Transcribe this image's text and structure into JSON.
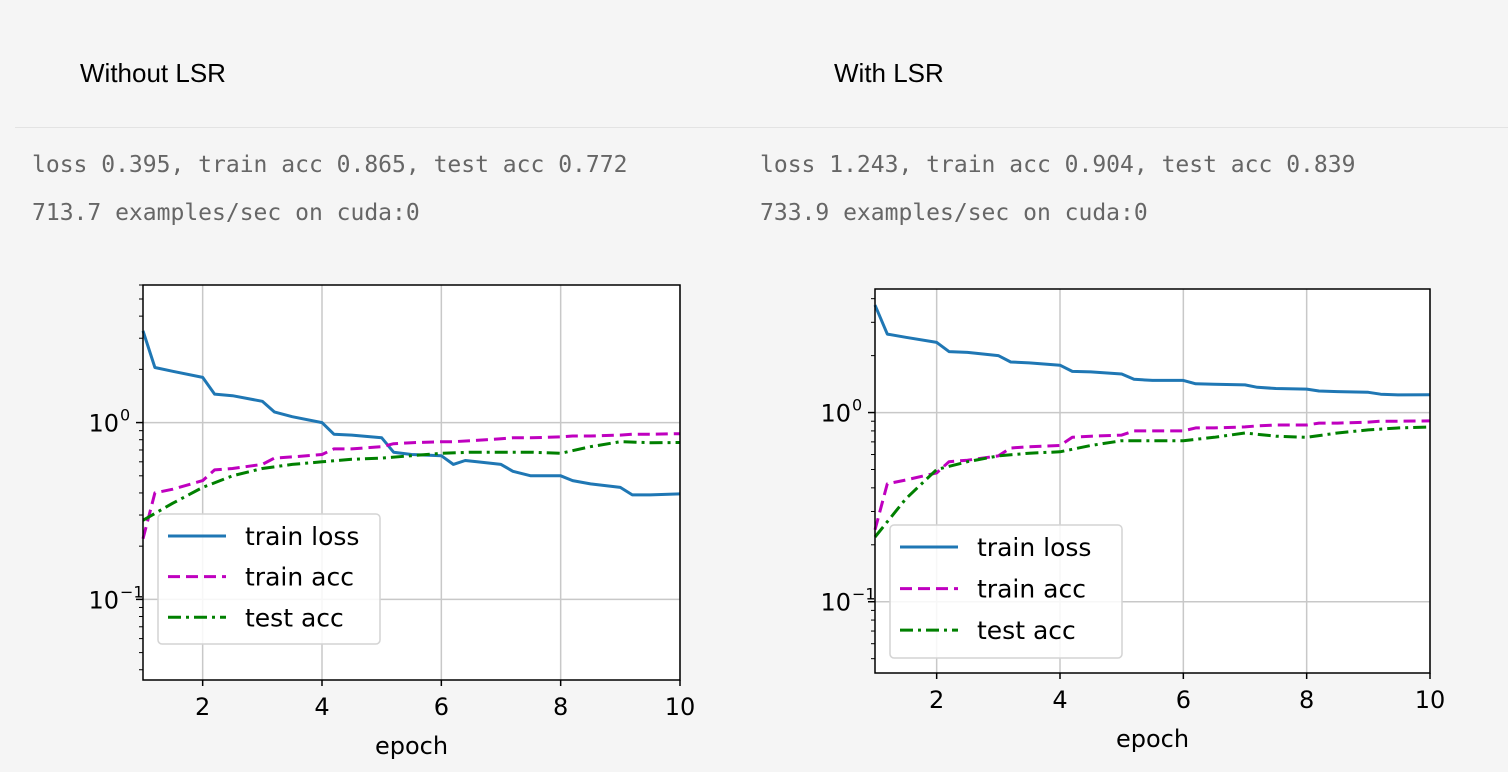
{
  "panels": [
    {
      "heading": "Without LSR",
      "log": [
        "loss 0.395, train acc 0.865, test acc 0.772",
        "713.7 examples/sec on cuda:0"
      ]
    },
    {
      "heading": "With LSR",
      "log": [
        "loss 1.243, train acc 0.904, test acc 0.839",
        "733.9 examples/sec on cuda:0"
      ]
    }
  ],
  "colors": {
    "train_loss": "#1f77b4",
    "train_acc": "#bf00bf",
    "test_acc": "#008000"
  },
  "chart_data": [
    {
      "type": "line",
      "xlabel": "epoch",
      "ylabel": "",
      "xlim": [
        1,
        10
      ],
      "ylim": [
        0.035,
        6.0
      ],
      "yscale": "log",
      "xticks": [
        2,
        4,
        6,
        8,
        10
      ],
      "yticks": [
        {
          "value": 0.1,
          "label": "10",
          "exp": "−1"
        },
        {
          "value": 1.0,
          "label": "10",
          "exp": "0"
        }
      ],
      "grid": true,
      "legend_position": "lower-left",
      "series": [
        {
          "name": "train loss",
          "style": "solid",
          "color_key": "train_loss",
          "x": [
            1.0,
            1.2,
            1.5,
            2.0,
            2.2,
            2.5,
            3.0,
            3.2,
            3.5,
            4.0,
            4.2,
            4.5,
            5.0,
            5.2,
            5.5,
            6.0,
            6.2,
            6.4,
            6.6,
            7.0,
            7.2,
            7.5,
            8.0,
            8.2,
            8.5,
            9.0,
            9.2,
            9.5,
            10.0
          ],
          "y": [
            3.3,
            2.05,
            1.95,
            1.8,
            1.45,
            1.42,
            1.32,
            1.15,
            1.08,
            1.0,
            0.86,
            0.85,
            0.82,
            0.68,
            0.66,
            0.65,
            0.58,
            0.61,
            0.6,
            0.58,
            0.53,
            0.5,
            0.5,
            0.47,
            0.45,
            0.43,
            0.39,
            0.39,
            0.395
          ]
        },
        {
          "name": "train acc",
          "style": "dashed",
          "color_key": "train_acc",
          "x": [
            1.0,
            1.2,
            1.5,
            2.0,
            2.2,
            2.5,
            3.0,
            3.2,
            3.5,
            4.0,
            4.2,
            4.5,
            5.0,
            5.2,
            5.5,
            6.0,
            6.2,
            6.5,
            7.0,
            7.2,
            7.5,
            8.0,
            8.2,
            8.5,
            9.0,
            9.2,
            9.5,
            10.0
          ],
          "y": [
            0.22,
            0.4,
            0.42,
            0.47,
            0.54,
            0.55,
            0.58,
            0.63,
            0.64,
            0.66,
            0.71,
            0.71,
            0.73,
            0.76,
            0.77,
            0.78,
            0.78,
            0.79,
            0.81,
            0.82,
            0.82,
            0.83,
            0.84,
            0.84,
            0.85,
            0.86,
            0.86,
            0.865
          ]
        },
        {
          "name": "test acc",
          "style": "dashdot",
          "color_key": "test_acc",
          "x": [
            1.0,
            1.5,
            2.0,
            2.5,
            3.0,
            3.5,
            4.0,
            4.5,
            5.0,
            5.5,
            6.0,
            6.5,
            7.0,
            7.5,
            8.0,
            8.5,
            9.0,
            9.5,
            10.0
          ],
          "y": [
            0.28,
            0.35,
            0.43,
            0.5,
            0.55,
            0.58,
            0.6,
            0.62,
            0.63,
            0.65,
            0.67,
            0.68,
            0.68,
            0.68,
            0.67,
            0.73,
            0.78,
            0.77,
            0.772
          ]
        }
      ]
    },
    {
      "type": "line",
      "xlabel": "epoch",
      "ylabel": "",
      "xlim": [
        1,
        10
      ],
      "ylim": [
        0.042,
        4.5
      ],
      "yscale": "log",
      "xticks": [
        2,
        4,
        6,
        8,
        10
      ],
      "yticks": [
        {
          "value": 0.1,
          "label": "10",
          "exp": "−1"
        },
        {
          "value": 1.0,
          "label": "10",
          "exp": "0"
        }
      ],
      "grid": true,
      "legend_position": "lower-left",
      "series": [
        {
          "name": "train loss",
          "style": "solid",
          "color_key": "train_loss",
          "x": [
            1.0,
            1.2,
            1.5,
            2.0,
            2.2,
            2.5,
            3.0,
            3.2,
            3.5,
            4.0,
            4.2,
            4.5,
            5.0,
            5.2,
            5.5,
            6.0,
            6.2,
            6.5,
            7.0,
            7.2,
            7.5,
            8.0,
            8.2,
            8.5,
            9.0,
            9.2,
            9.5,
            10.0
          ],
          "y": [
            3.7,
            2.6,
            2.5,
            2.35,
            2.1,
            2.08,
            2.0,
            1.85,
            1.83,
            1.78,
            1.65,
            1.64,
            1.6,
            1.5,
            1.48,
            1.48,
            1.42,
            1.41,
            1.4,
            1.36,
            1.34,
            1.33,
            1.3,
            1.29,
            1.28,
            1.25,
            1.24,
            1.243
          ]
        },
        {
          "name": "train acc",
          "style": "dashed",
          "color_key": "train_acc",
          "x": [
            1.0,
            1.2,
            1.5,
            2.0,
            2.2,
            2.5,
            3.0,
            3.2,
            3.5,
            4.0,
            4.2,
            4.5,
            5.0,
            5.2,
            5.5,
            6.0,
            6.2,
            6.5,
            7.0,
            7.2,
            7.5,
            8.0,
            8.2,
            8.5,
            9.0,
            9.2,
            9.5,
            10.0
          ],
          "y": [
            0.24,
            0.42,
            0.44,
            0.48,
            0.55,
            0.56,
            0.59,
            0.65,
            0.66,
            0.67,
            0.74,
            0.75,
            0.76,
            0.8,
            0.8,
            0.8,
            0.83,
            0.83,
            0.84,
            0.85,
            0.86,
            0.86,
            0.88,
            0.88,
            0.89,
            0.9,
            0.9,
            0.904
          ]
        },
        {
          "name": "test acc",
          "style": "dashdot",
          "color_key": "test_acc",
          "x": [
            1.0,
            1.5,
            2.0,
            2.5,
            3.0,
            3.5,
            4.0,
            4.5,
            5.0,
            5.5,
            6.0,
            6.5,
            7.0,
            7.5,
            8.0,
            8.5,
            9.0,
            9.5,
            10.0
          ],
          "y": [
            0.22,
            0.35,
            0.5,
            0.55,
            0.59,
            0.61,
            0.62,
            0.67,
            0.71,
            0.71,
            0.71,
            0.74,
            0.78,
            0.75,
            0.74,
            0.78,
            0.81,
            0.83,
            0.839
          ]
        }
      ]
    }
  ]
}
